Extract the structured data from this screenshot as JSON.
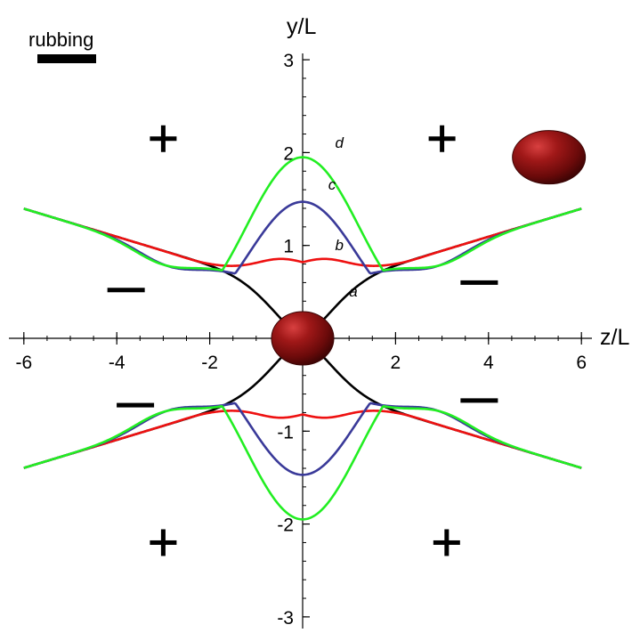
{
  "chart_data": {
    "type": "line",
    "xlabel": "z/L",
    "ylabel": "y/L",
    "xlim": [
      -6.1,
      6.1
    ],
    "ylim": [
      -3.1,
      3.1
    ],
    "xticks": [
      -6,
      -4,
      -2,
      2,
      4,
      6
    ],
    "xtick_labels": [
      "-6",
      "-4",
      "-2",
      "2",
      "4",
      "6"
    ],
    "yticks": [
      -3,
      -2,
      -1,
      1,
      2,
      3
    ],
    "ytick_labels": [
      "-3",
      "-2",
      "-1",
      "1",
      "2",
      "3"
    ],
    "grid": false,
    "rubbing_label": "rubbing",
    "signs": [
      {
        "symbol": "+",
        "x": -3.0,
        "y": 2.15
      },
      {
        "symbol": "+",
        "x": 3.0,
        "y": 2.15
      },
      {
        "symbol": "+",
        "x": -3.0,
        "y": -2.2
      },
      {
        "symbol": "+",
        "x": 3.1,
        "y": -2.2
      },
      {
        "symbol": "−",
        "x": -3.8,
        "y": 0.52
      },
      {
        "symbol": "−",
        "x": 3.8,
        "y": 0.6
      },
      {
        "symbol": "−",
        "x": -3.6,
        "y": -0.72
      },
      {
        "symbol": "−",
        "x": 3.8,
        "y": -0.67
      }
    ],
    "curve_labels": [
      {
        "text": "a",
        "x": 1.0,
        "y": 0.45
      },
      {
        "text": "b",
        "x": 0.7,
        "y": 0.95
      },
      {
        "text": "c",
        "x": 0.55,
        "y": 1.6
      },
      {
        "text": "d",
        "x": 0.7,
        "y": 2.05
      }
    ],
    "particles": [
      {
        "name": "central-droplet",
        "x": 0.0,
        "y": 0.0
      },
      {
        "name": "far-droplet",
        "x": 5.3,
        "y": 1.95
      }
    ],
    "series": [
      {
        "label": "a",
        "color": "#000000",
        "ymin": 0.0,
        "sigma": 1.0,
        "power": 0.6
      },
      {
        "label": "b",
        "color": "#ee1111",
        "ymin": 0.82,
        "sigma": 1.0,
        "power": 3.0
      },
      {
        "label": "c",
        "color": "#3a3a99",
        "ymin": 1.47,
        "sigma": 1.2,
        "power": 2.0
      },
      {
        "label": "d",
        "color": "#22ee22",
        "ymin": 1.95,
        "sigma": 1.25,
        "power": 2.0
      }
    ],
    "asymptote": {
      "slope": 0.151,
      "intercept": 0.49
    }
  }
}
